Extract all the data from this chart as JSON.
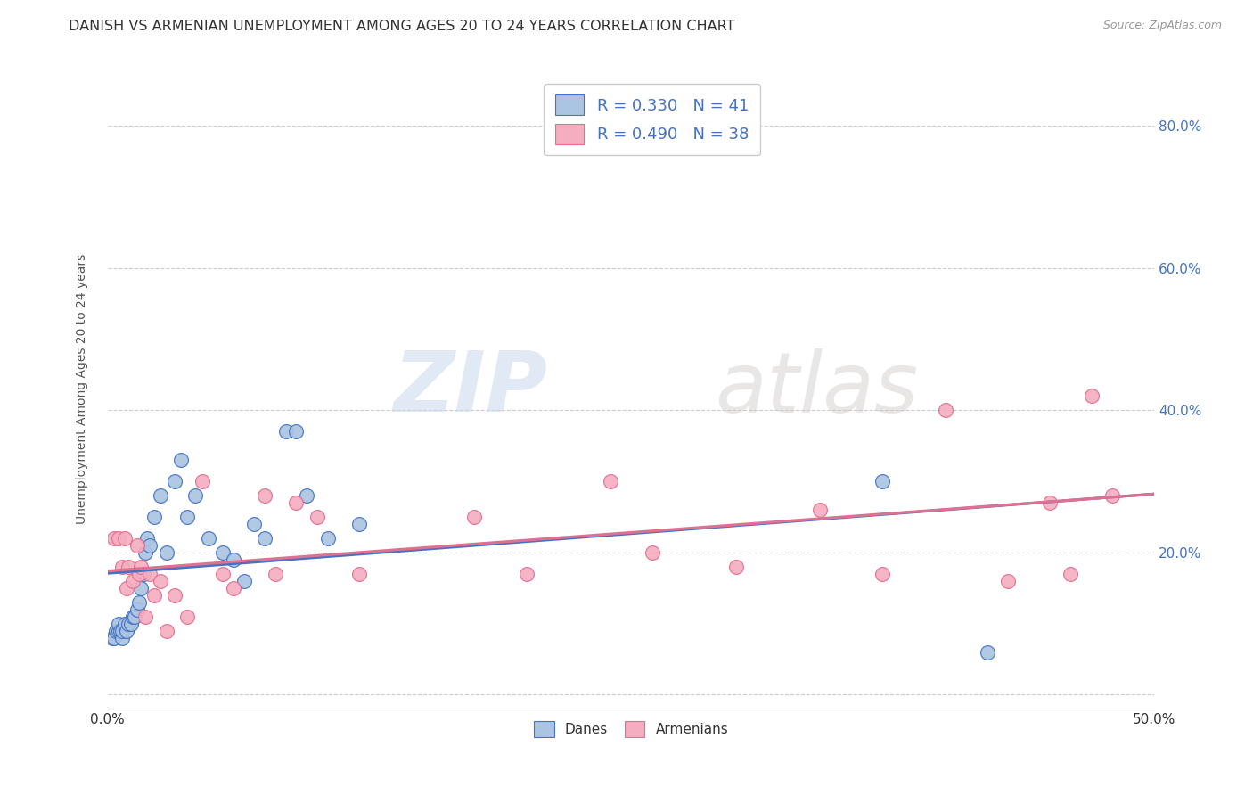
{
  "title": "DANISH VS ARMENIAN UNEMPLOYMENT AMONG AGES 20 TO 24 YEARS CORRELATION CHART",
  "source": "Source: ZipAtlas.com",
  "ylabel": "Unemployment Among Ages 20 to 24 years",
  "xlim": [
    0.0,
    0.5
  ],
  "ylim": [
    -0.02,
    0.88
  ],
  "xticks": [
    0.0,
    0.1,
    0.2,
    0.3,
    0.4,
    0.5
  ],
  "xtick_labels_show": [
    "0.0%",
    "",
    "",
    "",
    "",
    "50.0%"
  ],
  "yticks": [
    0.0,
    0.2,
    0.4,
    0.6,
    0.8
  ],
  "ytick_labels_right": [
    "",
    "20.0%",
    "40.0%",
    "60.0%",
    "80.0%"
  ],
  "danes_color": "#aac4e2",
  "armenians_color": "#f5adc0",
  "danes_line_color": "#4472c4",
  "armenians_line_color": "#e07090",
  "background_color": "#ffffff",
  "watermark_zip": "ZIP",
  "watermark_atlas": "atlas",
  "title_fontsize": 11.5,
  "axis_label_fontsize": 10,
  "tick_fontsize": 11,
  "legend1_text1": "R = 0.330   N = 41",
  "legend1_text2": "R = 0.490   N = 38",
  "legend2_text1": "Danes",
  "legend2_text2": "Armenians",
  "danes_x": [
    0.002,
    0.003,
    0.004,
    0.005,
    0.005,
    0.006,
    0.007,
    0.007,
    0.008,
    0.009,
    0.01,
    0.011,
    0.012,
    0.013,
    0.014,
    0.015,
    0.016,
    0.017,
    0.018,
    0.019,
    0.02,
    0.022,
    0.025,
    0.028,
    0.032,
    0.035,
    0.038,
    0.042,
    0.048,
    0.055,
    0.06,
    0.065,
    0.07,
    0.075,
    0.085,
    0.09,
    0.095,
    0.105,
    0.12,
    0.37,
    0.42
  ],
  "danes_y": [
    0.08,
    0.08,
    0.09,
    0.09,
    0.1,
    0.09,
    0.08,
    0.09,
    0.1,
    0.09,
    0.1,
    0.1,
    0.11,
    0.11,
    0.12,
    0.13,
    0.15,
    0.17,
    0.2,
    0.22,
    0.21,
    0.25,
    0.28,
    0.2,
    0.3,
    0.33,
    0.25,
    0.28,
    0.22,
    0.2,
    0.19,
    0.16,
    0.24,
    0.22,
    0.37,
    0.37,
    0.28,
    0.22,
    0.24,
    0.3,
    0.06
  ],
  "armenians_x": [
    0.003,
    0.005,
    0.007,
    0.008,
    0.009,
    0.01,
    0.012,
    0.014,
    0.015,
    0.016,
    0.018,
    0.02,
    0.022,
    0.025,
    0.028,
    0.032,
    0.038,
    0.045,
    0.055,
    0.06,
    0.075,
    0.08,
    0.09,
    0.1,
    0.12,
    0.175,
    0.2,
    0.24,
    0.26,
    0.3,
    0.34,
    0.37,
    0.4,
    0.43,
    0.45,
    0.46,
    0.47,
    0.48
  ],
  "armenians_y": [
    0.22,
    0.22,
    0.18,
    0.22,
    0.15,
    0.18,
    0.16,
    0.21,
    0.17,
    0.18,
    0.11,
    0.17,
    0.14,
    0.16,
    0.09,
    0.14,
    0.11,
    0.3,
    0.17,
    0.15,
    0.28,
    0.17,
    0.27,
    0.25,
    0.17,
    0.25,
    0.17,
    0.3,
    0.2,
    0.18,
    0.26,
    0.17,
    0.4,
    0.16,
    0.27,
    0.17,
    0.42,
    0.28
  ]
}
